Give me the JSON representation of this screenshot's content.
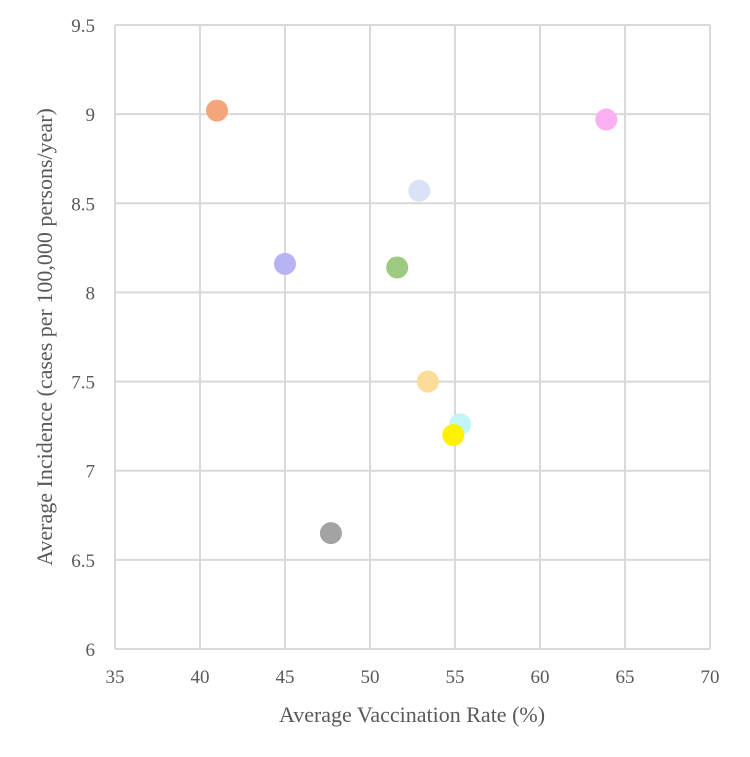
{
  "chart_data": {
    "type": "scatter",
    "title": "",
    "xlabel": "Average Vaccination Rate (%)",
    "ylabel": "Average Incidence (cases per 100,000 persons/year)",
    "xlim": [
      35,
      70
    ],
    "ylim": [
      6,
      9.5
    ],
    "x_ticks": [
      "35",
      "40",
      "45",
      "50",
      "55",
      "60",
      "65",
      "70"
    ],
    "y_ticks": [
      "6",
      "6.5",
      "7",
      "7.5",
      "8",
      "8.5",
      "9",
      "9.5"
    ],
    "grid": true,
    "legend": "none",
    "points": [
      {
        "x": 41.0,
        "y": 9.02,
        "color": "#f4a67a"
      },
      {
        "x": 63.9,
        "y": 8.97,
        "color": "#f9b0f3"
      },
      {
        "x": 52.9,
        "y": 8.57,
        "color": "#dae3f5"
      },
      {
        "x": 45.0,
        "y": 8.16,
        "color": "#b7b4f3"
      },
      {
        "x": 51.6,
        "y": 8.14,
        "color": "#9bca80"
      },
      {
        "x": 53.4,
        "y": 7.5,
        "color": "#fbdc98"
      },
      {
        "x": 55.3,
        "y": 7.26,
        "color": "#c2f6f6"
      },
      {
        "x": 54.9,
        "y": 7.2,
        "color": "#fff200"
      },
      {
        "x": 47.7,
        "y": 6.65,
        "color": "#a3a3a3"
      }
    ]
  }
}
